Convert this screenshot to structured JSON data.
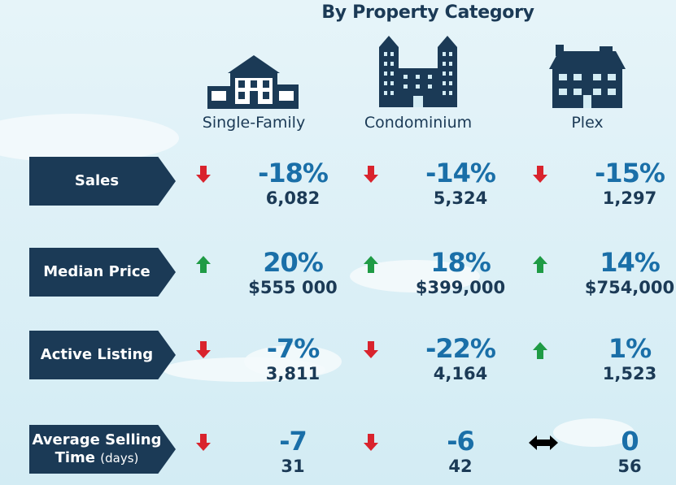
{
  "title": "By Property Category",
  "categories": [
    {
      "label": "Single-Family",
      "icon": "house-icon"
    },
    {
      "label": "Condominium",
      "icon": "condo-building-icon"
    },
    {
      "label": "Plex",
      "icon": "plex-building-icon"
    }
  ],
  "rows": [
    {
      "label": "Sales",
      "cells": [
        {
          "change": "-18%",
          "value": "6,082",
          "direction": "down"
        },
        {
          "change": "-14%",
          "value": "5,324",
          "direction": "down"
        },
        {
          "change": "-15%",
          "value": "1,297",
          "direction": "down"
        }
      ]
    },
    {
      "label": "Median Price",
      "cells": [
        {
          "change": "20%",
          "value": "$555 000",
          "direction": "up"
        },
        {
          "change": "18%",
          "value": "$399,000",
          "direction": "up"
        },
        {
          "change": "14%",
          "value": "$754,000",
          "direction": "up"
        }
      ]
    },
    {
      "label": "Active Listing",
      "cells": [
        {
          "change": "-7%",
          "value": "3,811",
          "direction": "down"
        },
        {
          "change": "-22%",
          "value": "4,164",
          "direction": "down"
        },
        {
          "change": "1%",
          "value": "1,523",
          "direction": "up"
        }
      ]
    },
    {
      "label": "Average Selling",
      "label2": "Time",
      "label_unit": "(days)",
      "cells": [
        {
          "change": "-7",
          "value": "31",
          "direction": "down"
        },
        {
          "change": "-6",
          "value": "42",
          "direction": "down"
        },
        {
          "change": "0",
          "value": "56",
          "direction": "flat"
        }
      ]
    }
  ],
  "colors": {
    "navy": "#1b3a56",
    "blue": "#1a6fa8",
    "down": "#d9232d",
    "up": "#1f9b45"
  }
}
